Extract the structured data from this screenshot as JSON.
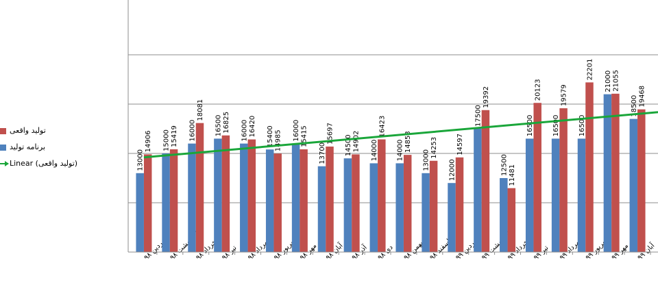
{
  "chart_data": {
    "type": "bar",
    "categories": [
      "فروردین ۹۸",
      "اردیبهشت ۹۸",
      "خرداد ۹۸",
      "تیر ۹۸",
      "مرداد ۹۸",
      "شهریور ۹۸",
      "مهر ۹۸",
      "آبان ۹۸",
      "آذر ۹۸",
      "دی ۹۸",
      "بهمن ۹۸",
      "اسفند ۹۸",
      "فروردین ۹۹",
      "اردیبهشت ۹۹",
      "خرداد ۹۹",
      "تیر ۹۹",
      "مرداد ۹۹",
      "شهریور ۹۹",
      "مهر ۹۹",
      "آبان ۹۹"
    ],
    "series": [
      {
        "name": "برنامه تولید",
        "color": "#4f81bd",
        "values": [
          13000,
          15000,
          16000,
          16500,
          16000,
          15400,
          16000,
          13700,
          14500,
          14000,
          14000,
          13000,
          12000,
          17500,
          12500,
          16500,
          16500,
          16500,
          21000,
          18500
        ]
      },
      {
        "name": "تولید واقعی",
        "color": "#c0504d",
        "values": [
          14906,
          15419,
          18081,
          16825,
          16420,
          14985,
          15415,
          15697,
          14902,
          16423,
          14853,
          14253,
          14597,
          19392,
          11481,
          20123,
          19579,
          22201,
          21055,
          19468
        ]
      }
    ],
    "trendline": {
      "name": "Linear (تولید واقعی)",
      "color": "#1aa63a",
      "series": "تولید واقعی"
    },
    "ylim": [
      5000,
      25000
    ],
    "grid": true,
    "legend_position": "left"
  },
  "legend": {
    "actual": "تولید واقعی",
    "plan": "برنامه تولید",
    "trend": "Linear (تولید واقعی)"
  }
}
